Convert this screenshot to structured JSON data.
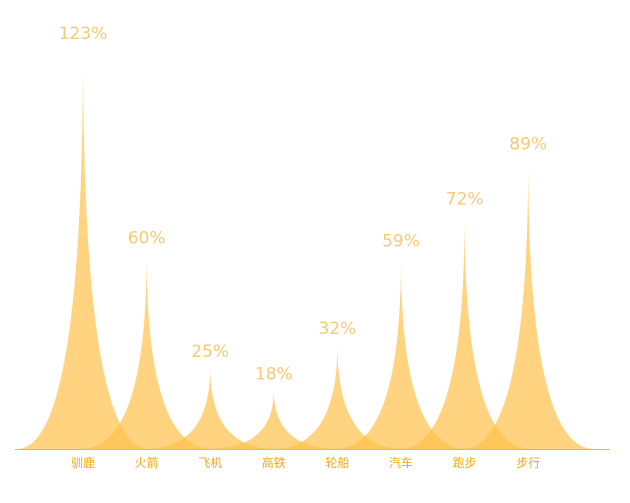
{
  "chart_data": {
    "type": "pictorialBar",
    "title": "",
    "xlabel": "",
    "ylabel": "",
    "categories": [
      "驯鹿",
      "火箭",
      "飞机",
      "高铁",
      "轮船",
      "汽车",
      "跑步",
      "步行"
    ],
    "values": [
      123,
      60,
      25,
      18,
      32,
      59,
      72,
      89
    ],
    "value_suffix": "%",
    "value_labels": [
      "123%",
      "60%",
      "25%",
      "18%",
      "32%",
      "59%",
      "72%",
      "89%"
    ],
    "ylim": [
      0,
      123
    ],
    "grid": false,
    "legend": "none",
    "colors": {
      "peak_fill": "#ffc24d",
      "peak_opacity": "0.72",
      "label_color": "#f8c974",
      "tick_color": "#f0a91a",
      "axis_color": "#f0b531"
    }
  }
}
